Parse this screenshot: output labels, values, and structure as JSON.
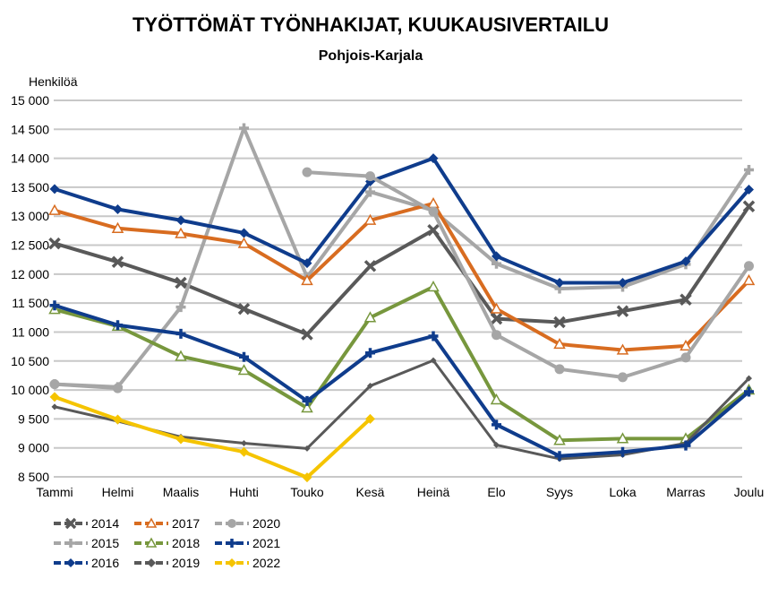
{
  "chart_data": {
    "type": "line",
    "title": "TYÖTTÖMÄT TYÖNHAKIJAT, KUUKAUSIVERTAILU",
    "subtitle": "Pohjois-Karjala",
    "ylabel": "Henkilöä",
    "xlabel": "",
    "ylim": [
      8500,
      15000
    ],
    "ytick_values": [
      8500,
      9000,
      9500,
      10000,
      10500,
      11000,
      11500,
      12000,
      12500,
      13000,
      13500,
      14000,
      14500,
      15000
    ],
    "ytick_labels": [
      "8 500",
      "9 000",
      "9 500",
      "10 000",
      "10 500",
      "11 000",
      "11 500",
      "12 000",
      "12 500",
      "13 000",
      "13 500",
      "14 000",
      "14 500",
      "15 000"
    ],
    "grid": true,
    "legend_position": "bottom-left",
    "categories": [
      "Tammi",
      "Helmi",
      "Maalis",
      "Huhti",
      "Touko",
      "Kesä",
      "Heinä",
      "Elo",
      "Syys",
      "Loka",
      "Marras",
      "Joulu"
    ],
    "series": [
      {
        "name": "2014",
        "color": "#595959",
        "dash": "solid",
        "marker": "x",
        "values": [
          12530,
          12210,
          11850,
          11400,
          10960,
          12140,
          12760,
          11230,
          11170,
          11360,
          11560,
          13170
        ]
      },
      {
        "name": "2015",
        "color": "#a6a6a6",
        "dash": "solid",
        "marker": "plus",
        "values": [
          10100,
          10050,
          11430,
          14520,
          11950,
          13420,
          13100,
          12180,
          11750,
          11780,
          12170,
          13800
        ]
      },
      {
        "name": "2016",
        "color": "#0f3c8c",
        "dash": "solid",
        "marker": "diamond",
        "values": [
          13470,
          13120,
          12930,
          12710,
          12190,
          13600,
          14000,
          12310,
          11850,
          11850,
          12220,
          13460
        ]
      },
      {
        "name": "2017",
        "color": "#d86c20",
        "dash": "solid",
        "marker": "triangle",
        "values": [
          13100,
          12790,
          12700,
          12530,
          11890,
          12930,
          13220,
          11400,
          10790,
          10690,
          10760,
          11890
        ]
      },
      {
        "name": "2018",
        "color": "#77973d",
        "dash": "solid",
        "marker": "triangle",
        "values": [
          11390,
          11100,
          10580,
          10340,
          9690,
          11250,
          11780,
          9830,
          9130,
          9160,
          9160,
          10000
        ]
      },
      {
        "name": "2019",
        "color": "#595959",
        "dash": "solid",
        "marker": "diamond",
        "values": [
          9710,
          9460,
          9190,
          9080,
          8990,
          10070,
          10510,
          9050,
          8810,
          8880,
          9080,
          10200
        ]
      },
      {
        "name": "2020",
        "color": "#a6a6a6",
        "dash": "solid",
        "marker": "circle",
        "values": [
          10100,
          10030,
          null,
          null,
          13760,
          13690,
          13080,
          10950,
          10360,
          10220,
          10560,
          12140
        ]
      },
      {
        "name": "2021",
        "color": "#0f3c8c",
        "dash": "solid",
        "marker": "plus",
        "values": [
          11460,
          11120,
          10970,
          10570,
          9810,
          10640,
          10930,
          9400,
          8860,
          8930,
          9040,
          9970
        ]
      },
      {
        "name": "2022",
        "color": "#f5c400",
        "dash": "solid",
        "marker": "diamond",
        "values": [
          9880,
          9490,
          9150,
          8930,
          8490,
          9500,
          null,
          null,
          null,
          null,
          null,
          null
        ]
      }
    ],
    "legend": {
      "columns": [
        [
          "2014",
          "2015",
          "2016"
        ],
        [
          "2017",
          "2018",
          "2019"
        ],
        [
          "2020",
          "2021",
          "2022"
        ]
      ]
    }
  }
}
